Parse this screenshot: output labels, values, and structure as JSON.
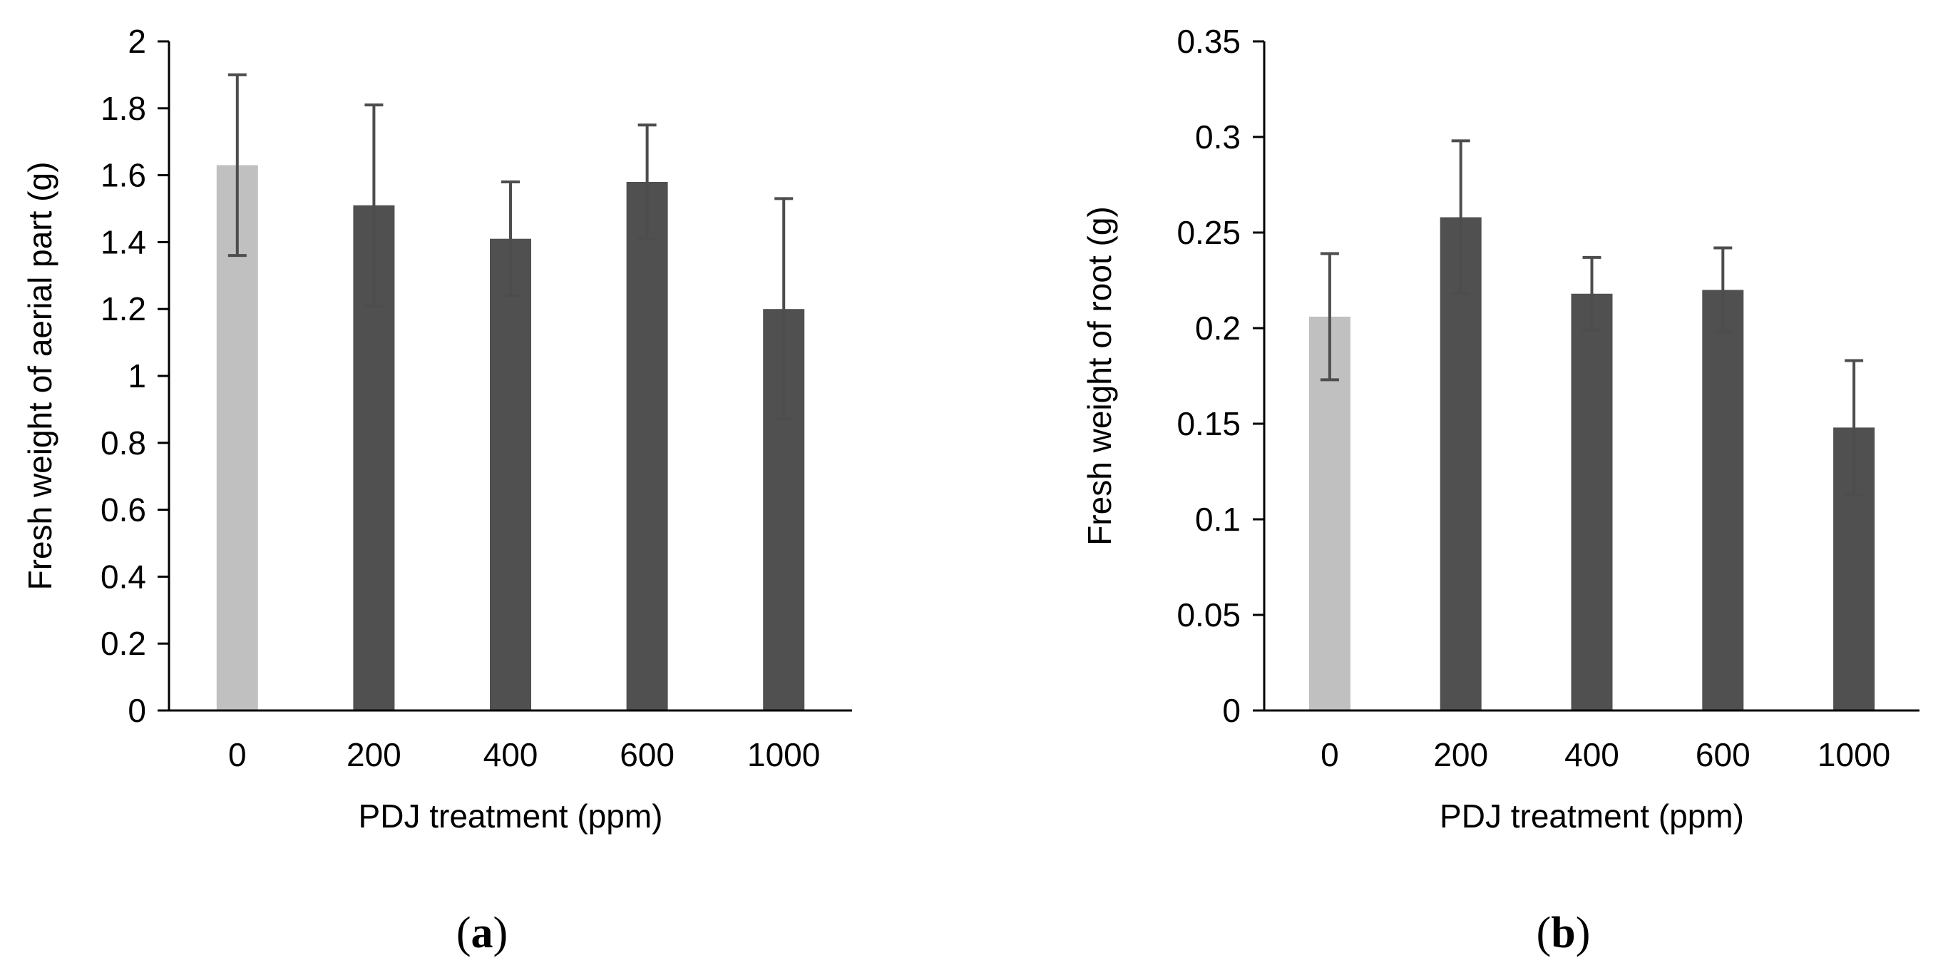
{
  "chart_data": [
    {
      "type": "bar",
      "panel_label": "a",
      "xlabel": "PDJ treatment (ppm)",
      "ylabel": "Fresh weight of aerial part (g)",
      "categories": [
        "0",
        "200",
        "400",
        "600",
        "1000"
      ],
      "values": [
        1.63,
        1.51,
        1.41,
        1.58,
        1.2
      ],
      "error": [
        0.27,
        0.3,
        0.17,
        0.17,
        0.33
      ],
      "ylim": [
        0,
        2
      ],
      "yticks": [
        0,
        0.2,
        0.4,
        0.6,
        0.8,
        1,
        1.2,
        1.4,
        1.6,
        1.8,
        2
      ],
      "ytick_labels": [
        "0",
        "0.2",
        "0.4",
        "0.6",
        "0.8",
        "1",
        "1.2",
        "1.4",
        "1.6",
        "1.8",
        "2"
      ],
      "bar_colors": [
        "#c0c0c0",
        "#505050",
        "#505050",
        "#505050",
        "#505050"
      ],
      "error_color": "#4d4d4d",
      "axis_color": "#000000",
      "grid": false
    },
    {
      "type": "bar",
      "panel_label": "b",
      "xlabel": "PDJ treatment (ppm)",
      "ylabel": "Fresh weight of root (g)",
      "categories": [
        "0",
        "200",
        "400",
        "600",
        "1000"
      ],
      "values": [
        0.206,
        0.258,
        0.218,
        0.22,
        0.148
      ],
      "error": [
        0.033,
        0.04,
        0.019,
        0.022,
        0.035
      ],
      "ylim": [
        0,
        0.35
      ],
      "yticks": [
        0,
        0.05,
        0.1,
        0.15,
        0.2,
        0.25,
        0.3,
        0.35
      ],
      "ytick_labels": [
        "0",
        "0.05",
        "0.1",
        "0.15",
        "0.2",
        "0.25",
        "0.3",
        "0.35"
      ],
      "bar_colors": [
        "#c0c0c0",
        "#505050",
        "#505050",
        "#505050",
        "#505050"
      ],
      "error_color": "#4d4d4d",
      "axis_color": "#000000",
      "grid": false
    }
  ]
}
